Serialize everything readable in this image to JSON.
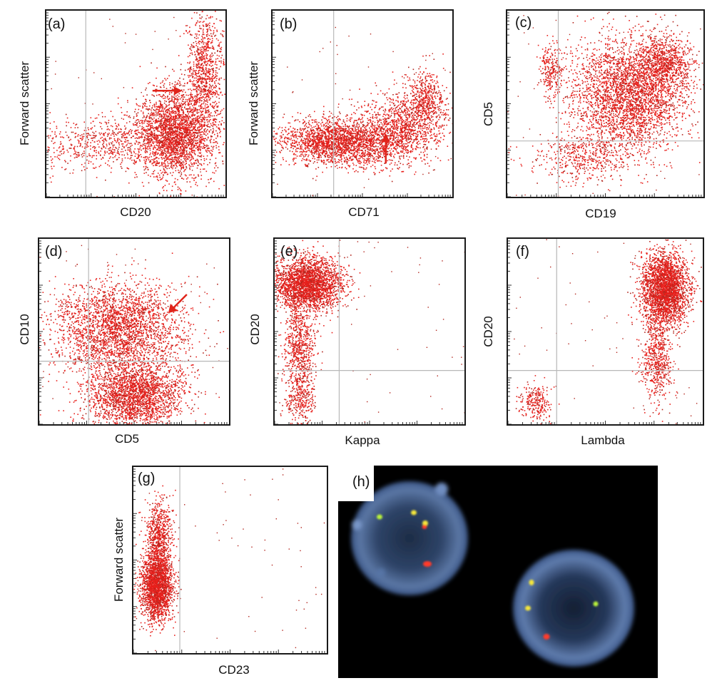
{
  "figure": {
    "colors": {
      "dots": "#e8201c",
      "dots_dark": "#b3261e",
      "gate": "#b8b8b8",
      "arrow": "#e0241b",
      "frame": "#1a1a1a"
    }
  },
  "chart_data": [
    {
      "type": "scatter",
      "panel": "(a)",
      "xlabel": "CD20",
      "ylabel": "Forward scatter",
      "scale": "log",
      "gates": {
        "vertical": 0.22,
        "horizontal": null
      },
      "populations": [
        {
          "name": "main",
          "cx": 0.72,
          "cy": 0.35,
          "sx": 0.11,
          "sy": 0.12,
          "n": 2600
        },
        {
          "name": "tail",
          "cx": 0.88,
          "cy": 0.68,
          "sx": 0.05,
          "sy": 0.16,
          "n": 900
        },
        {
          "name": "low",
          "cx": 0.35,
          "cy": 0.28,
          "sx": 0.22,
          "sy": 0.07,
          "n": 700
        }
      ],
      "arrow": {
        "direction": "right",
        "at": [
          0.76,
          0.57
        ]
      }
    },
    {
      "type": "scatter",
      "panel": "(b)",
      "xlabel": "CD71",
      "ylabel": "Forward scatter",
      "scale": "log",
      "gates": {
        "vertical": 0.34,
        "horizontal": null
      },
      "populations": [
        {
          "name": "main",
          "cx": 0.38,
          "cy": 0.3,
          "sx": 0.17,
          "sy": 0.06,
          "n": 2400
        },
        {
          "name": "right",
          "cx": 0.72,
          "cy": 0.38,
          "sx": 0.12,
          "sy": 0.1,
          "n": 1000
        },
        {
          "name": "high",
          "cx": 0.85,
          "cy": 0.52,
          "sx": 0.06,
          "sy": 0.08,
          "n": 500
        }
      ],
      "arrow": {
        "direction": "up",
        "at": [
          0.63,
          0.34
        ]
      }
    },
    {
      "type": "scatter",
      "panel": "(c)",
      "xlabel": "CD19",
      "ylabel": "CD5",
      "scale": "log",
      "gates": {
        "vertical": 0.26,
        "horizontal": 0.3
      },
      "populations": [
        {
          "name": "main",
          "cx": 0.62,
          "cy": 0.55,
          "sx": 0.14,
          "sy": 0.15,
          "n": 3200
        },
        {
          "name": "upper-right",
          "cx": 0.8,
          "cy": 0.72,
          "sx": 0.07,
          "sy": 0.08,
          "n": 800
        },
        {
          "name": "upper-left",
          "cx": 0.22,
          "cy": 0.68,
          "sx": 0.03,
          "sy": 0.08,
          "n": 250
        },
        {
          "name": "low",
          "cx": 0.4,
          "cy": 0.22,
          "sx": 0.14,
          "sy": 0.07,
          "n": 500
        }
      ]
    },
    {
      "type": "scatter",
      "panel": "(d)",
      "xlabel": "CD5",
      "ylabel": "CD10",
      "scale": "log",
      "gates": {
        "vertical": 0.26,
        "horizontal": 0.34
      },
      "populations": [
        {
          "name": "upper",
          "cx": 0.42,
          "cy": 0.52,
          "sx": 0.17,
          "sy": 0.12,
          "n": 2800
        },
        {
          "name": "lower",
          "cx": 0.5,
          "cy": 0.16,
          "sx": 0.13,
          "sy": 0.09,
          "n": 2400
        }
      ],
      "arrow": {
        "direction": "down-left",
        "at": [
          0.68,
          0.6
        ]
      }
    },
    {
      "type": "scatter",
      "panel": "(e)",
      "xlabel": "Kappa",
      "ylabel": "CD20",
      "scale": "log",
      "gates": {
        "vertical": 0.34,
        "horizontal": 0.29
      },
      "populations": [
        {
          "name": "main",
          "cx": 0.17,
          "cy": 0.76,
          "sx": 0.09,
          "sy": 0.07,
          "n": 2600
        },
        {
          "name": "stalk",
          "cx": 0.13,
          "cy": 0.4,
          "sx": 0.04,
          "sy": 0.15,
          "n": 800
        },
        {
          "name": "bottom",
          "cx": 0.13,
          "cy": 0.12,
          "sx": 0.04,
          "sy": 0.05,
          "n": 200
        }
      ]
    },
    {
      "type": "scatter",
      "panel": "(f)",
      "xlabel": "Lambda",
      "ylabel": "CD20",
      "scale": "log",
      "gates": {
        "vertical": 0.25,
        "horizontal": 0.29
      },
      "populations": [
        {
          "name": "main",
          "cx": 0.8,
          "cy": 0.73,
          "sx": 0.06,
          "sy": 0.1,
          "n": 2800
        },
        {
          "name": "tail",
          "cx": 0.76,
          "cy": 0.35,
          "sx": 0.04,
          "sy": 0.12,
          "n": 600
        },
        {
          "name": "negative",
          "cx": 0.14,
          "cy": 0.12,
          "sx": 0.04,
          "sy": 0.05,
          "n": 250
        }
      ]
    },
    {
      "type": "scatter",
      "panel": "(g)",
      "xlabel": "CD23",
      "ylabel": "Forward scatter",
      "scale": "log",
      "gates": {
        "vertical": 0.24,
        "horizontal": null
      },
      "populations": [
        {
          "name": "main",
          "cx": 0.12,
          "cy": 0.36,
          "sx": 0.04,
          "sy": 0.09,
          "n": 2200
        },
        {
          "name": "upper",
          "cx": 0.13,
          "cy": 0.62,
          "sx": 0.035,
          "sy": 0.1,
          "n": 700
        }
      ]
    }
  ],
  "fish_panel": {
    "letter": "(h)",
    "signal_colors": {
      "red": "#ff3b2b",
      "green": "#b9f23a",
      "fusion": "#f5e63a"
    }
  }
}
